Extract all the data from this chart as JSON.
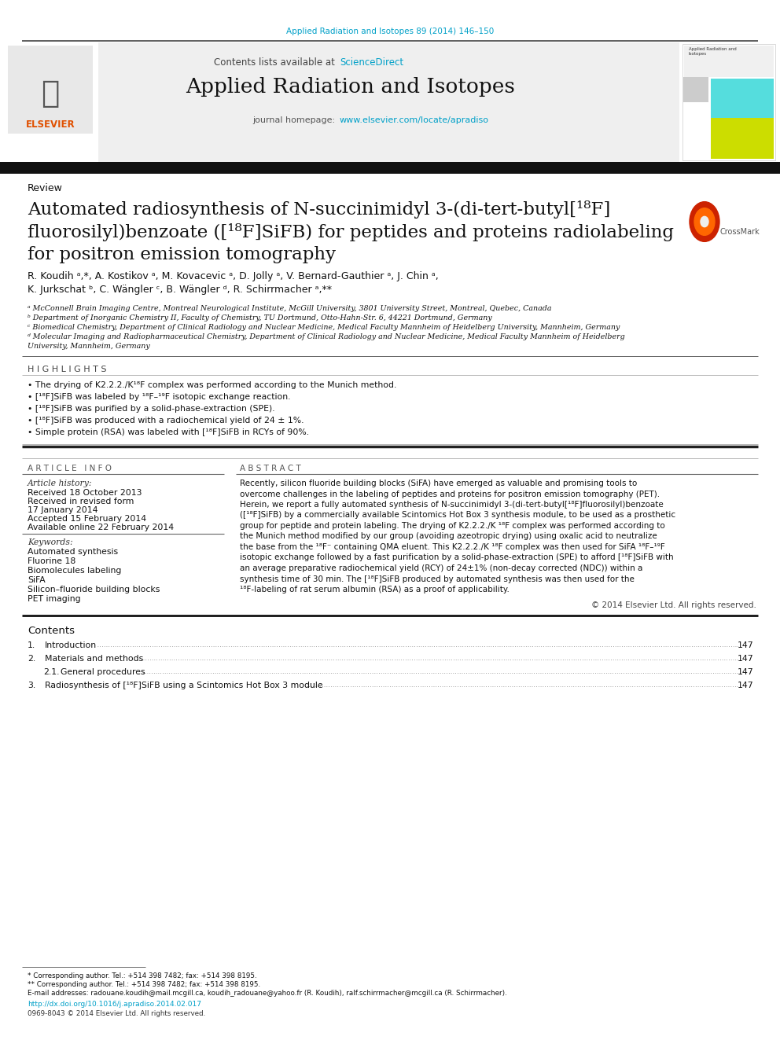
{
  "top_citation": "Applied Radiation and Isotopes 89 (2014) 146–150",
  "journal_title": "Applied Radiation and Isotopes",
  "science_direct": "ScienceDirect",
  "journal_homepage_url": "www.elsevier.com/locate/apradiso",
  "section_label": "Review",
  "title_line1": "Automated radiosynthesis of N-succinimidyl 3-(di-tert-butyl[¹⁸F]",
  "title_line2": "fluorosilyl)benzoate ([¹⁸F]SiFB) for peptides and proteins radiolabeling",
  "title_line3": "for positron emission tomography",
  "author_line1": "R. Koudih ᵃ,*, A. Kostikov ᵃ, M. Kovacevic ᵃ, D. Jolly ᵃ, V. Bernard-Gauthier ᵃ, J. Chin ᵃ,",
  "author_line2": "K. Jurkschat ᵇ, C. Wängler ᶜ, B. Wängler ᵈ, R. Schirrmacher ᵃ,**",
  "affil_a": "ᵃ McConnell Brain Imaging Centre, Montreal Neurological Institute, McGill University, 3801 University Street, Montreal, Quebec, Canada",
  "affil_b": "ᵇ Department of Inorganic Chemistry II, Faculty of Chemistry, TU Dortmund, Otto-Hahn-Str. 6, 44221 Dortmund, Germany",
  "affil_c": "ᶜ Biomedical Chemistry, Department of Clinical Radiology and Nuclear Medicine, Medical Faculty Mannheim of Heidelberg University, Mannheim, Germany",
  "affil_d1": "ᵈ Molecular Imaging and Radiopharmaceutical Chemistry, Department of Clinical Radiology and Nuclear Medicine, Medical Faculty Mannheim of Heidelberg",
  "affil_d2": "University, Mannheim, Germany",
  "highlights_title": "H I G H L I G H T S",
  "highlights": [
    "The drying of K2.2.2./K¹⁸F complex was performed according to the Munich method.",
    "[¹⁸F]SiFB was labeled by ¹⁸F–¹⁹F isotopic exchange reaction.",
    "[¹⁸F]SiFB was purified by a solid-phase-extraction (SPE).",
    "[¹⁸F]SiFB was produced with a radiochemical yield of 24 ± 1%.",
    "Simple protein (RSA) was labeled with [¹⁸F]SiFB in RCYs of 90%."
  ],
  "article_info_title": "A R T I C L E   I N F O",
  "abstract_title": "A B S T R A C T",
  "article_history_label": "Article history:",
  "received": "Received 18 October 2013",
  "revised": "Received in revised form",
  "revised2": "17 January 2014",
  "accepted": "Accepted 15 February 2014",
  "available": "Available online 22 February 2014",
  "keywords_label": "Keywords:",
  "keywords": [
    "Automated synthesis",
    "Fluorine 18",
    "Biomolecules labeling",
    "SiFA",
    "Silicon–fluoride building blocks",
    "PET imaging"
  ],
  "abstract_lines": [
    "Recently, silicon fluoride building blocks (SiFA) have emerged as valuable and promising tools to",
    "overcome challenges in the labeling of peptides and proteins for positron emission tomography (PET).",
    "Herein, we report a fully automated synthesis of N-succinimidyl 3-(di-tert-butyl[¹⁸F]fluorosilyl)benzoate",
    "([¹⁸F]SiFB) by a commercially available Scintomics Hot Box 3 synthesis module, to be used as a prosthetic",
    "group for peptide and protein labeling. The drying of K2.2.2./K ¹⁸F complex was performed according to",
    "the Munich method modified by our group (avoiding azeotropic drying) using oxalic acid to neutralize",
    "the base from the ¹⁸F⁻ containing QMA eluent. This K2.2.2./K ¹⁸F complex was then used for SiFA ¹⁸F–¹⁹F",
    "isotopic exchange followed by a fast purification by a solid-phase-extraction (SPE) to afford [¹⁸F]SiFB with",
    "an average preparative radiochemical yield (RCY) of 24±1% (non-decay corrected (NDC)) within a",
    "synthesis time of 30 min. The [¹⁸F]SiFB produced by automated synthesis was then used for the",
    "¹⁸F-labeling of rat serum albumin (RSA) as a proof of applicability."
  ],
  "copyright": "© 2014 Elsevier Ltd. All rights reserved.",
  "contents_title": "Contents",
  "contents_items": [
    {
      "num": "1.",
      "indent": false,
      "text": "Introduction",
      "page": "147"
    },
    {
      "num": "2.",
      "indent": false,
      "text": "Materials and methods",
      "page": "147"
    },
    {
      "num": "2.1.",
      "indent": true,
      "text": "General procedures",
      "page": "147"
    },
    {
      "num": "3.",
      "indent": false,
      "text": "Radiosynthesis of [¹⁸F]SiFB using a Scintomics Hot Box 3 module",
      "page": "147"
    }
  ],
  "footnote_star": "* Corresponding author. Tel.: +514 398 7482; fax: +514 398 8195.",
  "footnote_dstar": "** Corresponding author. Tel.: +514 398 7482; fax: +514 398 8195.",
  "footnote_email": "E-mail addresses: radouane.koudih@mail.mcgill.ca, koudih_radouane@yahoo.fr (R. Koudih), ralf.schirrmacher@mcgill.ca (R. Schirrmacher).",
  "doi": "http://dx.doi.org/10.1016/j.apradiso.2014.02.017",
  "issn": "0969-8043 © 2014 Elsevier Ltd. All rights reserved.",
  "link_color": "#00a0c8",
  "elsevier_orange": "#e05000"
}
